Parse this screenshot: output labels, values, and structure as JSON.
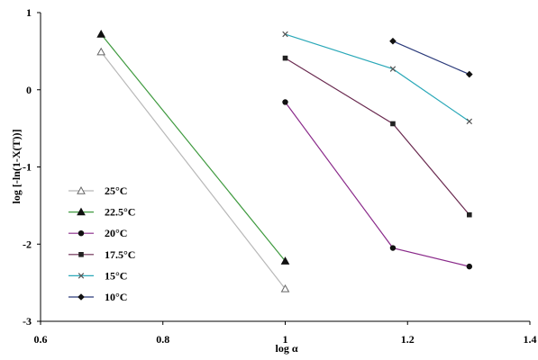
{
  "chart_data": {
    "type": "line",
    "title": "",
    "xlabel": "log α",
    "ylabel": "log [-ln(1-X(T))]",
    "xlim": [
      0.6,
      1.4
    ],
    "ylim": [
      -3,
      1
    ],
    "xticks": [
      0.6,
      0.8,
      1,
      1.2,
      1.4
    ],
    "xtick_labels": [
      "0.6",
      "0.8",
      "1",
      "1.2",
      "1.4"
    ],
    "yticks": [
      1,
      0,
      -1,
      -2,
      -3
    ],
    "ytick_labels": [
      "1",
      "0",
      "-1",
      "-2",
      "-3"
    ],
    "grid": false,
    "legend_position": "left",
    "series": [
      {
        "name": "25°C",
        "color": "#b8b8b8",
        "marker": "triangle-open",
        "x": [
          0.699,
          1.0
        ],
        "y": [
          0.49,
          -2.58
        ]
      },
      {
        "name": "22.5°C",
        "color": "#3f9a3f",
        "marker": "triangle",
        "x": [
          0.699,
          1.0
        ],
        "y": [
          0.72,
          -2.22
        ]
      },
      {
        "name": "20°C",
        "color": "#8a2a8a",
        "marker": "circle",
        "x": [
          1.0,
          1.176,
          1.301
        ],
        "y": [
          -0.16,
          -2.05,
          -2.29
        ]
      },
      {
        "name": "17.5°C",
        "color": "#6a2a50",
        "marker": "square",
        "x": [
          1.0,
          1.176,
          1.301
        ],
        "y": [
          0.41,
          -0.44,
          -1.62
        ]
      },
      {
        "name": "15°C",
        "color": "#2aa8b8",
        "marker": "x",
        "x": [
          1.0,
          1.176,
          1.301
        ],
        "y": [
          0.72,
          0.27,
          -0.41
        ]
      },
      {
        "name": "10°C",
        "color": "#2a3a7a",
        "marker": "diamond",
        "x": [
          1.176,
          1.301
        ],
        "y": [
          0.63,
          0.2
        ]
      }
    ]
  }
}
